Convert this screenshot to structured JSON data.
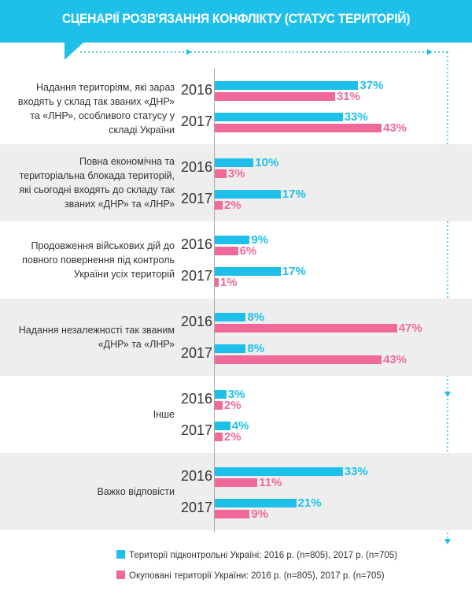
{
  "title": "СЦЕНАРІЇ РОЗВ'ЯЗАННЯ КОНФЛІКТУ (СТАТУС ТЕРИТОРІЙ)",
  "colors": {
    "controlled": "#1ec0ea",
    "occupied": "#f0699a",
    "header": "#1ec0ea"
  },
  "chart_data": {
    "type": "bar",
    "orientation": "horizontal",
    "title": "СЦЕНАРІЇ РОЗВ'ЯЗАННЯ КОНФЛІКТУ (СТАТУС ТЕРИТОРІЙ)",
    "unit": "%",
    "years": [
      "2016",
      "2017"
    ],
    "categories": [
      {
        "label": "Надання територіям, які зараз входять у склад так званих «ДНР» та «ЛНР», особливого статусу у складі України",
        "controlled": [
          37,
          33
        ],
        "occupied": [
          31,
          43
        ]
      },
      {
        "label": "Повна економічна та територіальна блокада територій, які сьогодні входять до складу так званих «ДНР» та «ЛНР»",
        "controlled": [
          10,
          17
        ],
        "occupied": [
          3,
          2
        ]
      },
      {
        "label": "Продовження військових дій до повного повернення під контроль України усіх територій",
        "controlled": [
          9,
          17
        ],
        "occupied": [
          6,
          1
        ]
      },
      {
        "label": "Надання незалежності так званим «ДНР» та «ЛНР»",
        "controlled": [
          8,
          8
        ],
        "occupied": [
          47,
          43
        ]
      },
      {
        "label": "Інше",
        "controlled": [
          3,
          4
        ],
        "occupied": [
          2,
          2
        ]
      },
      {
        "label": "Важко відповісти",
        "controlled": [
          33,
          21
        ],
        "occupied": [
          11,
          9
        ]
      }
    ],
    "legend": [
      {
        "key": "controlled",
        "label": "Території підконтрольні Україні:  2016 р. (n=805), 2017 р. (n=705)"
      },
      {
        "key": "occupied",
        "label": "Окуповані території України: 2016 р. (n=805), 2017 р. (n=705)"
      }
    ],
    "legend_position": "bottom-left",
    "xlim": [
      0,
      50
    ]
  }
}
